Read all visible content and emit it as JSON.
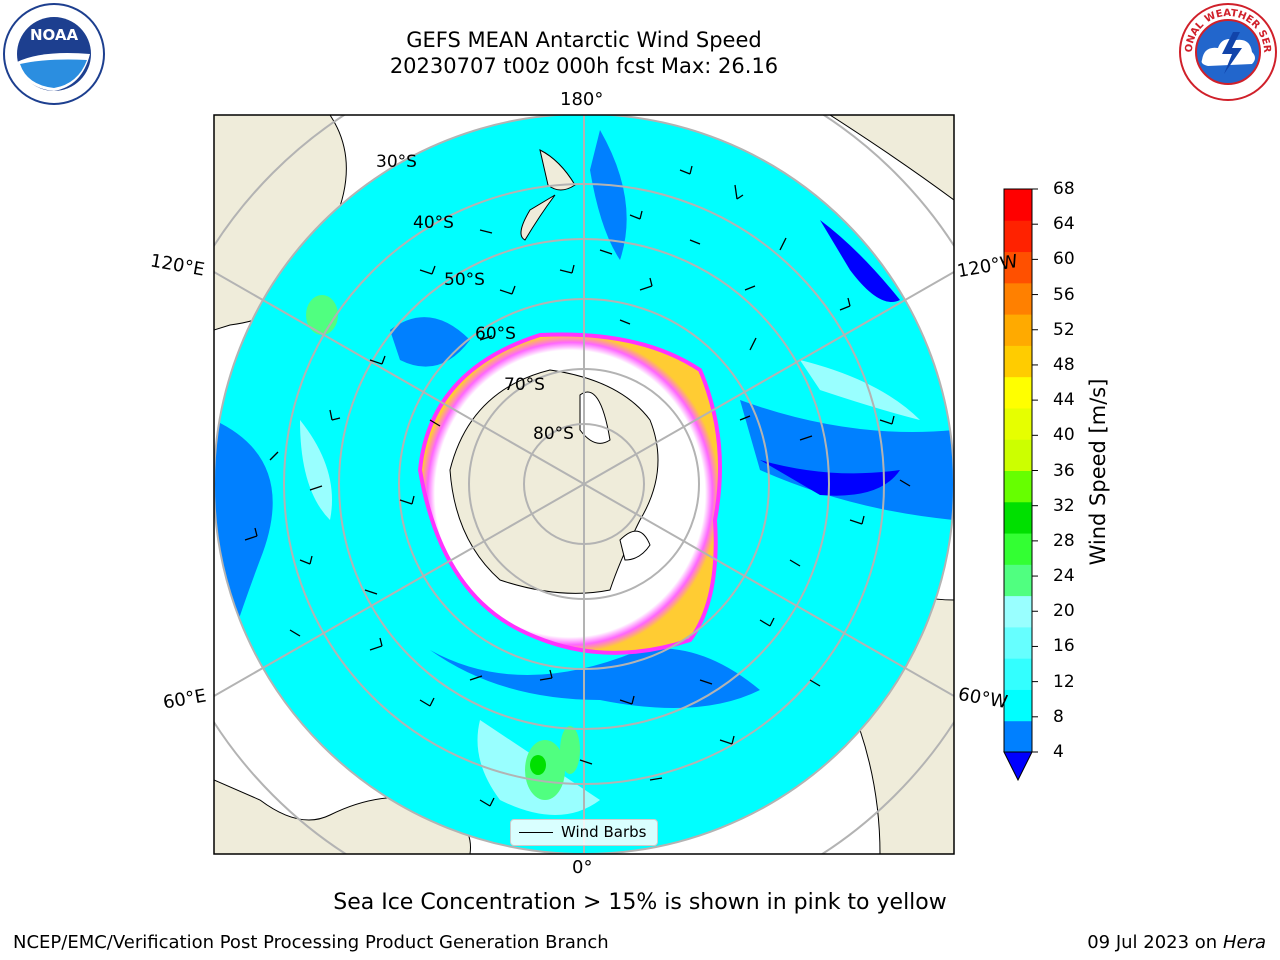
{
  "title": {
    "line1": "GEFS MEAN Antarctic Wind Speed",
    "line2": "20230707 t00z 000h fcst   Max: 26.16"
  },
  "map": {
    "projection": "south polar stereographic",
    "lon_labels": {
      "top": "180°",
      "bottom": "0°",
      "upper_left": "120°E",
      "upper_right": "120°W",
      "lower_left": "60°E",
      "lower_right": "60°W"
    },
    "lat_labels": [
      "30°S",
      "40°S",
      "50°S",
      "60°S",
      "70°S",
      "80°S"
    ],
    "colors": {
      "land": "#efecda",
      "ocean_background": "#00ffff",
      "sea_ice": "#ffffff",
      "sea_ice_edge": [
        "#ff33ff",
        "#ff66cc",
        "#ffcc33"
      ],
      "graticule": "#b3b3b3"
    }
  },
  "colorbar": {
    "label": "Wind Speed [m/s]",
    "ticks": [
      "4",
      "8",
      "12",
      "16",
      "20",
      "24",
      "28",
      "32",
      "36",
      "40",
      "44",
      "48",
      "52",
      "56",
      "60",
      "64",
      "68"
    ],
    "colors": [
      "#0080ff",
      "#00ffff",
      "#33ffff",
      "#66ffff",
      "#99ffff",
      "#50ff80",
      "#33ff33",
      "#00e000",
      "#66ff00",
      "#ccff00",
      "#e6ff00",
      "#ffff00",
      "#ffcc00",
      "#ffaa00",
      "#ff8000",
      "#ff5000",
      "#ff2200",
      "#ff0000"
    ],
    "under_color": "#0000ff"
  },
  "legend": {
    "label": "Wind Barbs"
  },
  "footnote": "Sea Ice Concentration > 15% is shown in pink to yellow",
  "credits": {
    "left": "NCEP/EMC/Verification Post Processing Product Generation Branch",
    "date": "09 Jul 2023 on ",
    "host": "Hera"
  },
  "logos": {
    "left": "NOAA",
    "right": "NATIONAL WEATHER SERVICE"
  }
}
